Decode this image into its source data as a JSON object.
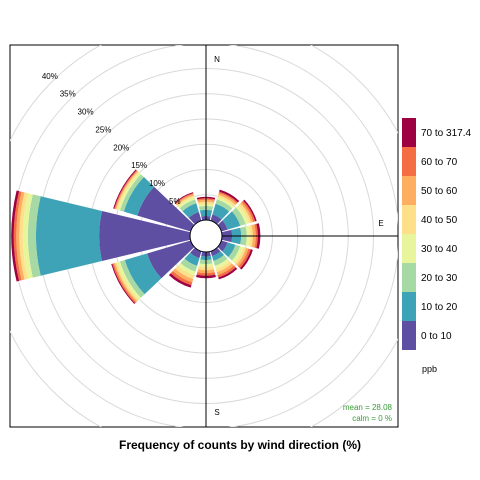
{
  "chart_data": {
    "type": "polar-stacked-bar",
    "title": "Frequency of counts by wind direction (%)",
    "pollutant_unit": "ppb",
    "radial_axis": {
      "ticks": [
        5,
        10,
        15,
        20,
        25,
        30,
        35,
        40
      ],
      "tick_labels": [
        "5%",
        "10%",
        "15%",
        "20%",
        "25%",
        "30%",
        "35%",
        "40%"
      ],
      "max": 40,
      "grid": true
    },
    "compass_labels": [
      "N",
      "E",
      "S"
    ],
    "bins": [
      {
        "label": "0 to 10",
        "color": "#5e4fa2"
      },
      {
        "label": "10 to 20",
        "color": "#3ea3b6"
      },
      {
        "label": "20 to 30",
        "color": "#a6d9a4"
      },
      {
        "label": "30 to 40",
        "color": "#e9f59d"
      },
      {
        "label": "40 to 50",
        "color": "#fee08b"
      },
      {
        "label": "50 to 60",
        "color": "#fdae61"
      },
      {
        "label": "60 to 70",
        "color": "#f46d43"
      },
      {
        "label": "70 to 317.4",
        "color": "#9e0142"
      }
    ],
    "directions": [
      {
        "dir": 0,
        "cumulative": [
          0.8,
          2.0,
          2.8,
          3.2,
          3.6,
          4.0,
          4.3,
          4.6
        ]
      },
      {
        "dir": 30,
        "cumulative": [
          1.3,
          3.5,
          4.4,
          4.9,
          5.3,
          5.7,
          6.0,
          6.4
        ]
      },
      {
        "dir": 60,
        "cumulative": [
          1.3,
          3.9,
          5.0,
          5.7,
          6.2,
          6.6,
          7.0,
          7.3
        ]
      },
      {
        "dir": 90,
        "cumulative": [
          2.0,
          3.8,
          4.9,
          5.6,
          6.1,
          6.7,
          7.1,
          7.6
        ]
      },
      {
        "dir": 120,
        "cumulative": [
          1.3,
          2.9,
          3.9,
          4.6,
          5.1,
          5.6,
          6.1,
          6.5
        ]
      },
      {
        "dir": 150,
        "cumulative": [
          1.0,
          2.0,
          3.0,
          3.7,
          4.3,
          4.9,
          5.4,
          5.8
        ]
      },
      {
        "dir": 180,
        "cumulative": [
          0.9,
          1.6,
          2.4,
          3.0,
          3.6,
          4.2,
          4.7,
          5.2
        ]
      },
      {
        "dir": 210,
        "cumulative": [
          1.4,
          3.0,
          4.2,
          5.0,
          5.7,
          6.4,
          7.0,
          7.5
        ]
      },
      {
        "dir": 240,
        "cumulative": [
          9.0,
          13.6,
          14.6,
          15.2,
          15.6,
          15.9,
          16.2,
          16.4
        ]
      },
      {
        "dir": 270,
        "cumulative": [
          18.0,
          30.5,
          32.1,
          33.1,
          33.8,
          34.4,
          34.9,
          35.4
        ]
      },
      {
        "dir": 300,
        "cumulative": [
          11.0,
          13.8,
          14.6,
          15.1,
          15.4,
          15.6,
          15.8,
          16.0
        ]
      },
      {
        "dir": 330,
        "cumulative": [
          1.8,
          3.6,
          4.4,
          4.9,
          5.2,
          5.5,
          5.7,
          5.9
        ]
      }
    ],
    "stats": {
      "mean_label": "mean =  28.08",
      "calm_label": "calm =  0 %"
    },
    "legend_placement": "right"
  }
}
